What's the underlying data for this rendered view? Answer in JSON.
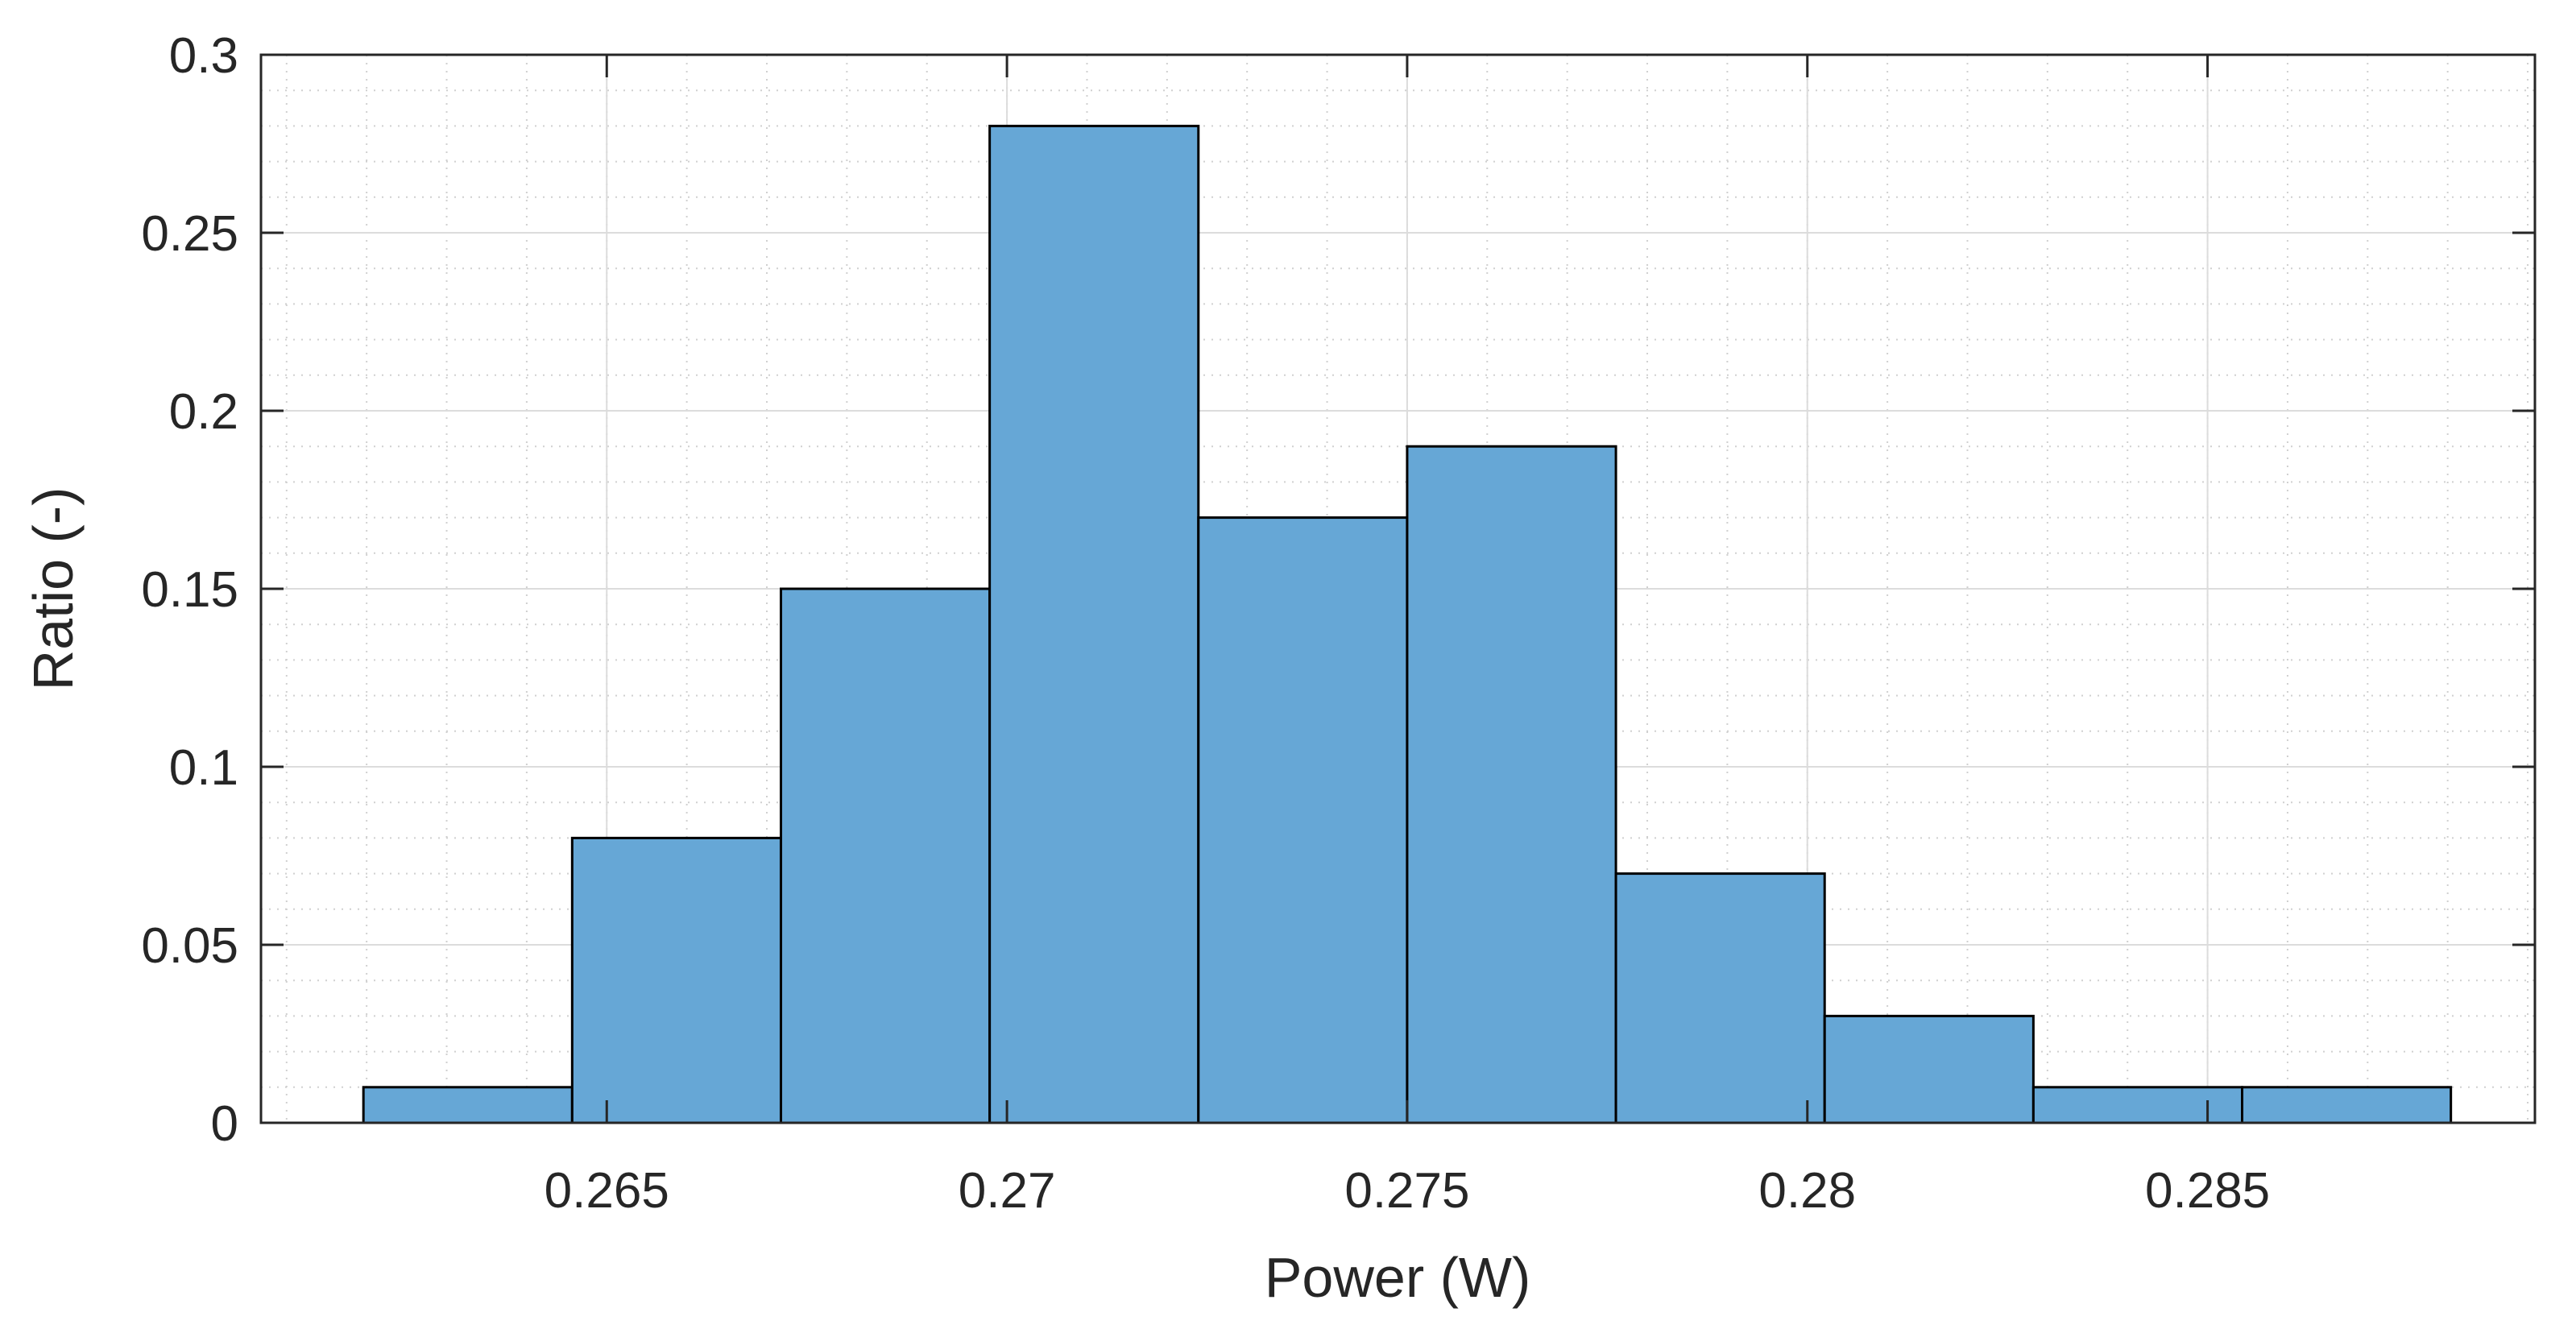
{
  "chart_data": {
    "type": "bar",
    "subtype": "histogram",
    "title": "",
    "xlabel": "Power (W)",
    "ylabel": "Ratio (-)",
    "xlim": [
      0.26068,
      0.28909
    ],
    "ylim": [
      0,
      0.3
    ],
    "bin_edges": [
      0.26196,
      0.264568,
      0.267176,
      0.269784,
      0.272392,
      0.275,
      0.277608,
      0.280216,
      0.282824,
      0.285432,
      0.28804
    ],
    "values": [
      0.01,
      0.08,
      0.15,
      0.28,
      0.17,
      0.19,
      0.07,
      0.03,
      0.01,
      0.01
    ],
    "x_ticks": [
      0.265,
      0.27,
      0.275,
      0.28,
      0.285
    ],
    "x_tick_labels": [
      "0.265",
      "0.27",
      "0.275",
      "0.28",
      "0.285"
    ],
    "y_ticks": [
      0,
      0.05,
      0.1,
      0.15,
      0.2,
      0.25,
      0.3
    ],
    "y_tick_labels": [
      "0",
      "0.05",
      "0.1",
      "0.15",
      "0.2",
      "0.25",
      "0.3"
    ],
    "grid": "major and minor",
    "colors": {
      "bar_fill": "#66a7d6",
      "bar_edge": "#000000"
    }
  }
}
